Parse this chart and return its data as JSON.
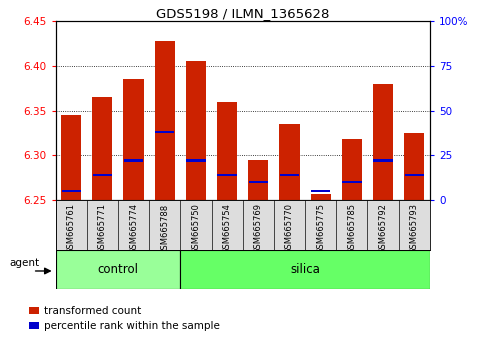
{
  "title": "GDS5198 / ILMN_1365628",
  "samples": [
    "GSM665761",
    "GSM665771",
    "GSM665774",
    "GSM665788",
    "GSM665750",
    "GSM665754",
    "GSM665769",
    "GSM665770",
    "GSM665775",
    "GSM665785",
    "GSM665792",
    "GSM665793"
  ],
  "control_count": 4,
  "silica_count": 8,
  "baseline": 6.25,
  "transformed_count": [
    6.345,
    6.365,
    6.385,
    6.428,
    6.405,
    6.36,
    6.295,
    6.335,
    6.257,
    6.318,
    6.38,
    6.325
  ],
  "percentile_rank": [
    5,
    14,
    22,
    38,
    22,
    14,
    10,
    14,
    5,
    10,
    22,
    14
  ],
  "ylim": [
    6.25,
    6.45
  ],
  "yticks_left": [
    6.25,
    6.3,
    6.35,
    6.4,
    6.45
  ],
  "yticks_right": [
    0,
    25,
    50,
    75,
    100
  ],
  "bar_width": 0.65,
  "red_color": "#CC2200",
  "blue_color": "#0000CC",
  "control_color": "#99FF99",
  "silica_color": "#66FF66",
  "legend_items": [
    "transformed count",
    "percentile rank within the sample"
  ],
  "agent_label": "agent",
  "group_labels": [
    "control",
    "silica"
  ]
}
